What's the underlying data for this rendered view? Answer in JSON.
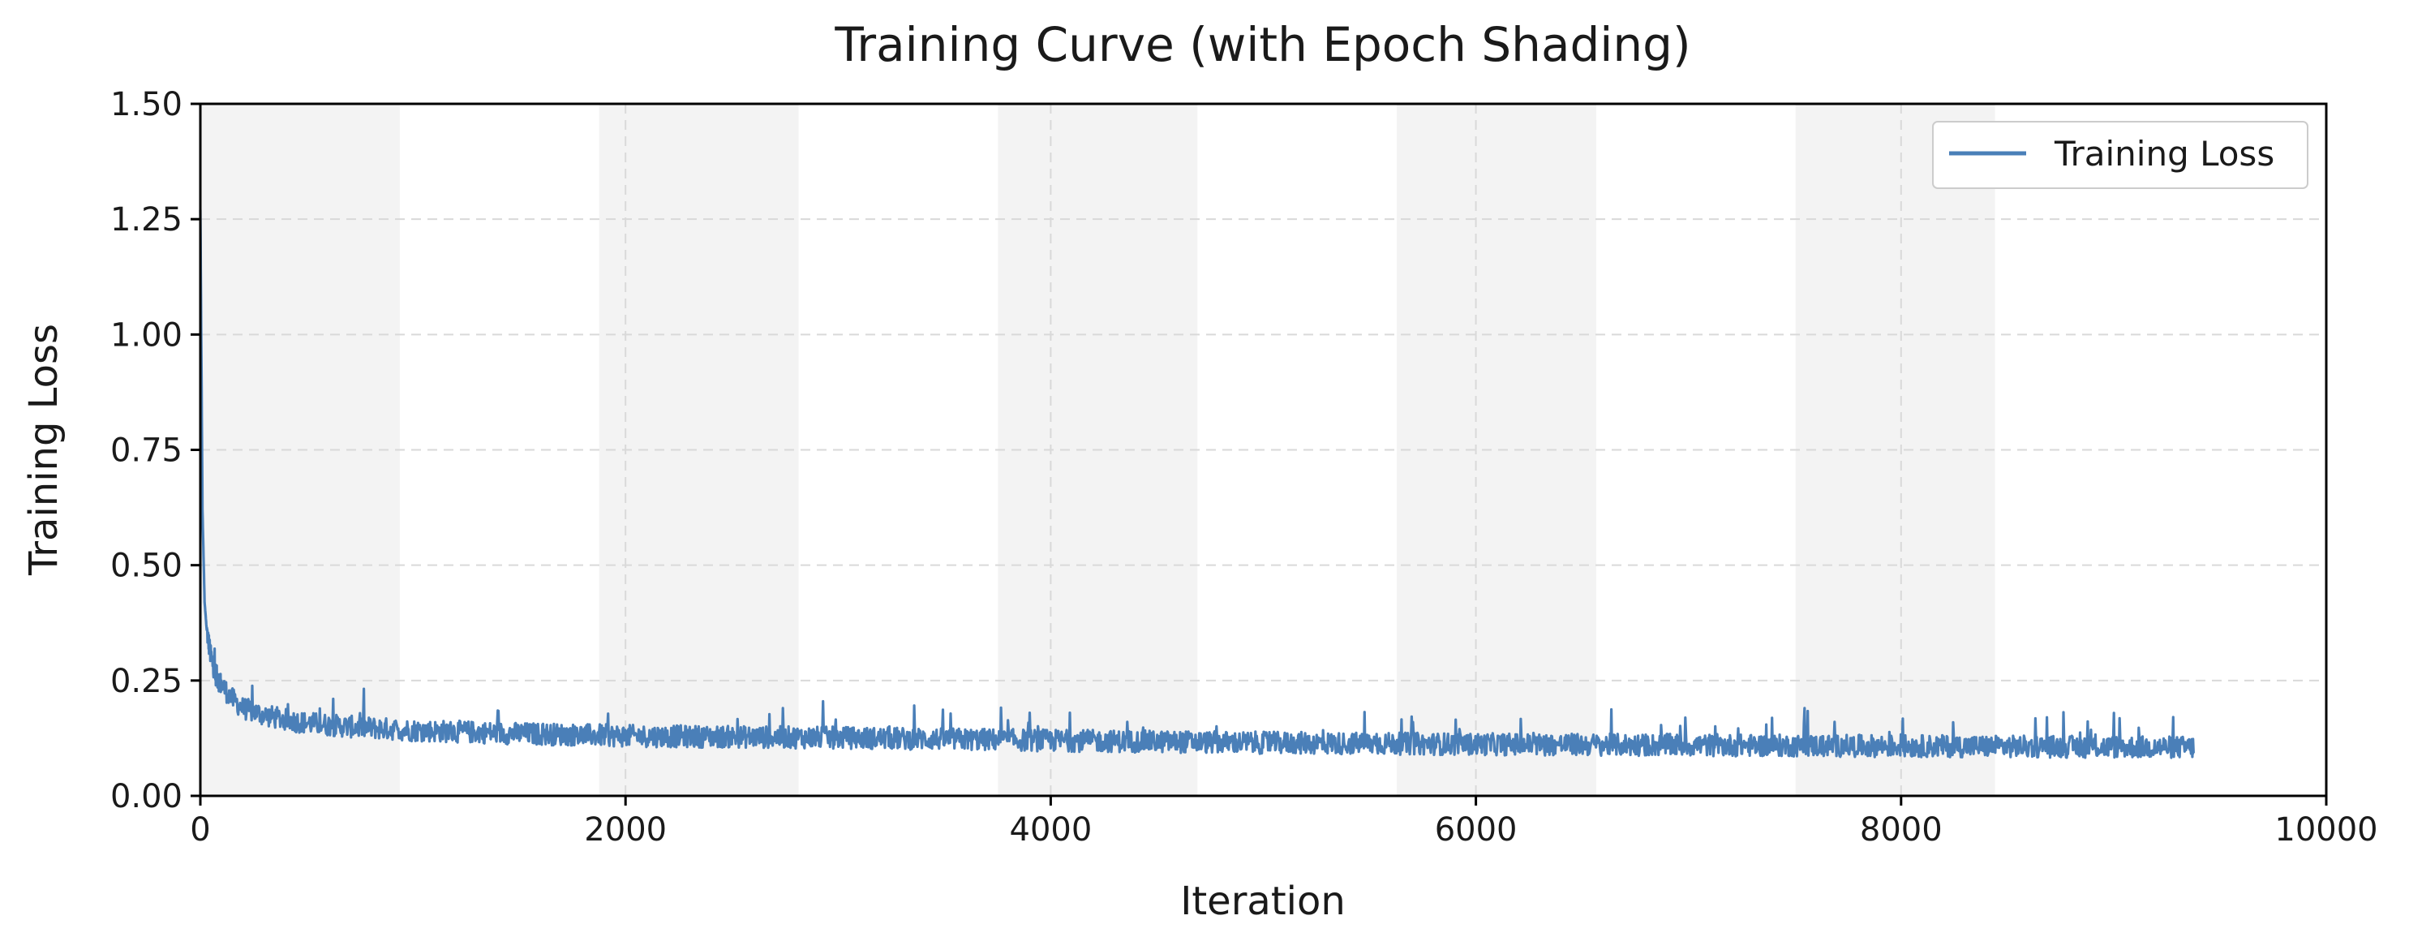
{
  "chart_data": {
    "type": "line",
    "title": "Training Curve (with Epoch Shading)",
    "xlabel": "Iteration",
    "ylabel": "Training Loss",
    "xlim": [
      0,
      10000
    ],
    "ylim": [
      0,
      1.5
    ],
    "x_ticks": [
      0,
      2000,
      4000,
      6000,
      8000,
      10000
    ],
    "x_tick_labels": [
      "0",
      "2000",
      "4000",
      "6000",
      "8000",
      "10000"
    ],
    "y_ticks": [
      0,
      0.25,
      0.5,
      0.75,
      1.0,
      1.25,
      1.5
    ],
    "y_tick_labels": [
      "0.00",
      "0.25",
      "0.50",
      "0.75",
      "1.00",
      "1.25",
      "1.50"
    ],
    "grid": true,
    "legend": {
      "position": "top-right",
      "entries": [
        "Training Loss"
      ]
    },
    "epoch_shading": [
      [
        0,
        938
      ],
      [
        1876,
        2814
      ],
      [
        3752,
        4690
      ],
      [
        5628,
        6566
      ],
      [
        7504,
        8442
      ]
    ],
    "series": [
      {
        "name": "Training Loss",
        "color": "#4a7fb8",
        "x_range": [
          0,
          9380
        ],
        "points": [
          [
            0,
            1.27
          ],
          [
            5,
            0.95
          ],
          [
            10,
            0.62
          ],
          [
            20,
            0.42
          ],
          [
            30,
            0.36
          ],
          [
            50,
            0.3
          ],
          [
            75,
            0.26
          ],
          [
            100,
            0.24
          ],
          [
            150,
            0.21
          ],
          [
            200,
            0.19
          ],
          [
            300,
            0.175
          ],
          [
            400,
            0.165
          ],
          [
            500,
            0.158
          ],
          [
            700,
            0.15
          ],
          [
            1000,
            0.142
          ],
          [
            1500,
            0.135
          ],
          [
            2000,
            0.13
          ],
          [
            3000,
            0.126
          ],
          [
            4000,
            0.12
          ],
          [
            5000,
            0.115
          ],
          [
            6000,
            0.112
          ],
          [
            7000,
            0.11
          ],
          [
            8000,
            0.108
          ],
          [
            9000,
            0.106
          ],
          [
            9380,
            0.105
          ]
        ],
        "noise_band": 0.03
      }
    ]
  }
}
